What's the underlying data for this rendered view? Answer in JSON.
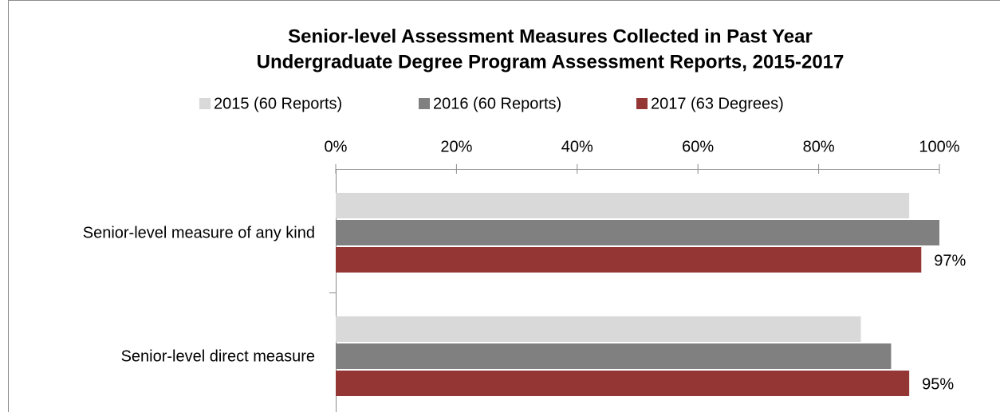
{
  "chart_data": {
    "type": "bar",
    "orientation": "horizontal",
    "title": [
      "Senior-level Assessment Measures Collected in Past Year",
      "Undergraduate Degree Program Assessment Reports, 2015-2017"
    ],
    "categories": [
      "Senior-level measure of any kind",
      "Senior-level direct measure"
    ],
    "series": [
      {
        "name": "2015 (60 Reports)",
        "color": "#d9d9d9",
        "values": [
          95,
          87
        ]
      },
      {
        "name": "2016 (60 Reports)",
        "color": "#808080",
        "values": [
          100,
          92
        ]
      },
      {
        "name": "2017 (63 Degrees)",
        "color": "#943634",
        "values": [
          97,
          95
        ],
        "value_labels": [
          "97%",
          "95%"
        ]
      }
    ],
    "xlim": [
      0,
      100
    ],
    "xticks": [
      {
        "value": 0,
        "label": "0%"
      },
      {
        "value": 20,
        "label": "20%"
      },
      {
        "value": 40,
        "label": "40%"
      },
      {
        "value": 60,
        "label": "60%"
      },
      {
        "value": 80,
        "label": "80%"
      },
      {
        "value": 100,
        "label": "100%"
      }
    ],
    "legend": "top"
  }
}
